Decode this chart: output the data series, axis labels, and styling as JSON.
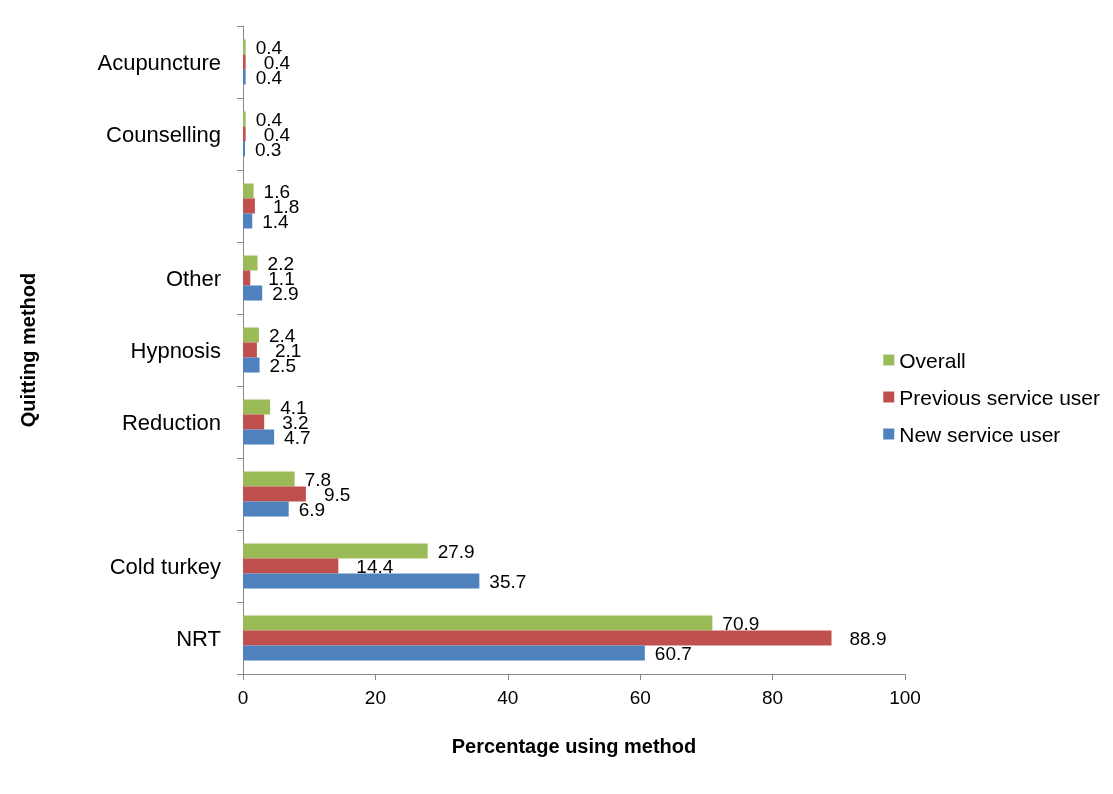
{
  "chart_data": {
    "type": "bar",
    "orientation": "horizontal",
    "xlabel": "Percentage using method",
    "ylabel": "Quitting method",
    "categories": [
      "Acupuncture",
      "Counselling",
      null,
      "Other",
      "Hypnosis",
      "Reduction",
      null,
      "Cold turkey",
      "NRT"
    ],
    "series": [
      {
        "name": "Overall",
        "color": "#9bbb59",
        "values": [
          0.4,
          0.4,
          1.6,
          2.2,
          2.4,
          4.1,
          7.8,
          27.9,
          70.9
        ]
      },
      {
        "name": "Previous service user",
        "color": "#c0504d",
        "values": [
          0.4,
          0.4,
          1.8,
          1.1,
          2.1,
          3.2,
          9.5,
          14.4,
          88.9
        ]
      },
      {
        "name": "New service user",
        "color": "#4f81bd",
        "values": [
          0.4,
          0.3,
          1.4,
          2.9,
          2.5,
          4.7,
          6.9,
          35.7,
          60.7
        ]
      }
    ],
    "xlim": [
      0,
      100
    ],
    "xticks": [
      0,
      20,
      40,
      60,
      80,
      100
    ],
    "grid": false,
    "legend": "right",
    "data_labels": true
  }
}
